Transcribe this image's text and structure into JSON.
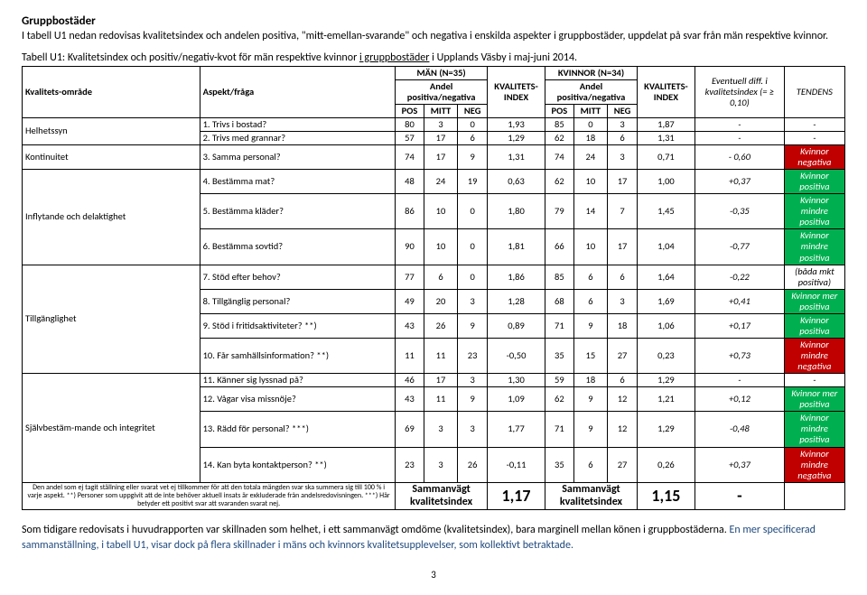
{
  "title": "Gruppbostäder",
  "intro": "I tabell U1 nedan redovisas kvalitetsindex och andelen positiva, \"mitt-emellan-svarande\" och negativa i enskilda aspekter i gruppbostäder, uppdelat på svar från män respektive kvinnor.",
  "caption_plain": "Tabell U1: Kvalitetsindex och positiv/negativ-kvot för män respektive kvinnor ",
  "caption_underlined": "i gruppbostäder",
  "caption_after": " i Upplands Väsby i maj-juni 2014.",
  "headers": {
    "omrade": "Kvalitets-område",
    "aspekt": "Aspekt/fråga",
    "man": "MÄN (N=35)",
    "kvinnor": "KVINNOR (N=34)",
    "andel": "Andel positiva/negativa",
    "kvalindex": "KVALITETS-INDEX",
    "pos": "POS",
    "mitt": "MITT",
    "neg": "NEG",
    "diff": "Eventuell diff. i kvalitetsindex (= ≥ 0,10)",
    "tendens": "TENDENS"
  },
  "areas": [
    {
      "label": "Helhetssyn",
      "rows": [
        "r0",
        "r1"
      ]
    },
    {
      "label": "Kontinuitet",
      "rows": [
        "r2"
      ]
    },
    {
      "label": "Inflytande och delaktighet",
      "rows": [
        "r3",
        "r4",
        "r5"
      ]
    },
    {
      "label": "Tillgänglighet",
      "rows": [
        "r6",
        "r7",
        "r8",
        "r9"
      ]
    },
    {
      "label": "Självbestäm-mande och integritet",
      "rows": [
        "r10",
        "r11",
        "r12",
        "r13"
      ]
    }
  ],
  "rows": {
    "r0": {
      "q": "1.  Trivs i bostad?",
      "m": [
        80,
        3,
        0
      ],
      "mi": "1,93",
      "k": [
        85,
        0,
        3
      ],
      "ki": "1,87",
      "diff": "-",
      "t": "-",
      "tc": null
    },
    "r1": {
      "q": "2.  Trivs med grannar?",
      "m": [
        57,
        17,
        6
      ],
      "mi": "1,29",
      "k": [
        62,
        18,
        6
      ],
      "ki": "1,31",
      "diff": "-",
      "t": "-",
      "tc": null
    },
    "r2": {
      "q": "3.  Samma personal?",
      "m": [
        74,
        17,
        9
      ],
      "mi": "1,31",
      "k": [
        74,
        24,
        3
      ],
      "ki": "0,71",
      "diff": "- 0,60",
      "t": "Kvinnor negativa",
      "tc": "#c00000"
    },
    "r3": {
      "q": "4.  Bestämma mat?",
      "m": [
        48,
        24,
        19
      ],
      "mi": "0,63",
      "k": [
        62,
        10,
        17
      ],
      "ki": "1,00",
      "diff": "+0,37",
      "t": "Kvinnor positiva",
      "tc": "#00b050"
    },
    "r4": {
      "q": "5.  Bestämma kläder?",
      "m": [
        86,
        10,
        0
      ],
      "mi": "1,80",
      "k": [
        79,
        14,
        7
      ],
      "ki": "1,45",
      "diff": "-0,35",
      "t": "Kvinnor mindre positiva",
      "tc": "#00b050"
    },
    "r5": {
      "q": "6.  Bestämma sovtid?",
      "m": [
        90,
        10,
        0
      ],
      "mi": "1,81",
      "k": [
        66,
        10,
        17
      ],
      "ki": "1,04",
      "diff": "-0,77",
      "t": "Kvinnor mindre positiva",
      "tc": "#00b050"
    },
    "r6": {
      "q": "7.  Stöd efter behov?",
      "m": [
        77,
        6,
        0
      ],
      "mi": "1,86",
      "k": [
        85,
        6,
        6
      ],
      "ki": "1,64",
      "diff": "-0,22",
      "t": "(båda mkt positiva)",
      "tc": null
    },
    "r7": {
      "q": "8.  Tillgänglig personal?",
      "m": [
        49,
        20,
        3
      ],
      "mi": "1,28",
      "k": [
        68,
        6,
        3
      ],
      "ki": "1,69",
      "diff": "+0,41",
      "t": "Kvinnor mer positiva",
      "tc": "#00b050"
    },
    "r8": {
      "q": "9.  Stöd i fritidsaktiviteter? **)",
      "m": [
        43,
        26,
        9
      ],
      "mi": "0,89",
      "k": [
        71,
        9,
        18
      ],
      "ki": "1,06",
      "diff": "+0,17",
      "t": "Kvinnor positiva",
      "tc": "#00b050"
    },
    "r9": {
      "q": "10.  Får samhällsinformation? **)",
      "m": [
        11,
        11,
        23
      ],
      "mi": "-0,50",
      "k": [
        35,
        15,
        27
      ],
      "ki": "0,23",
      "diff": "+0,73",
      "t": "Kvinnor mindre negativa",
      "tc": "#c00000"
    },
    "r10": {
      "q": "11.  Känner sig lyssnad på?",
      "m": [
        46,
        17,
        3
      ],
      "mi": "1,30",
      "k": [
        59,
        18,
        6
      ],
      "ki": "1,29",
      "diff": "-",
      "t": "-",
      "tc": null
    },
    "r11": {
      "q": "12.  Vågar visa missnöje?",
      "m": [
        43,
        11,
        9
      ],
      "mi": "1,09",
      "k": [
        62,
        9,
        12
      ],
      "ki": "1,21",
      "diff": "+0,12",
      "t": "Kvinnor mer positiva",
      "tc": "#00b050"
    },
    "r12": {
      "q": "13.  Rädd för personal? ***)",
      "m": [
        69,
        3,
        3
      ],
      "mi": "1,77",
      "k": [
        71,
        9,
        12
      ],
      "ki": "1,29",
      "diff": "-0,48",
      "t": "Kvinnor mindre positiva",
      "tc": "#00b050"
    },
    "r13": {
      "q": "14.  Kan byta kontaktperson? **)",
      "m": [
        23,
        3,
        26
      ],
      "mi": "-0,11",
      "k": [
        35,
        6,
        27
      ],
      "ki": "0,26",
      "diff": "+0,37",
      "t": "Kvinnor mindre negativa",
      "tc": "#c00000"
    }
  },
  "footnote": "Den andel som ej tagit ställning eller svarat vet ej tillkommer för att den totala mängden svar ska summera sig till 100 % i varje aspekt. **) Personer som uppgivit att de inte behöver aktuell insats är exkluderade från andelsredovisningen. ***) Här betyder ett positivt svar att svaranden svarat nej.",
  "summary": {
    "label": "Sammanvägt kvalitetsindex",
    "m": "1,17",
    "k": "1,15",
    "diff": "-"
  },
  "body1": "Som tidigare redovisats i huvudrapporten var skillnaden som helhet, i ett sammanvägt omdöme (kvalitetsindex), bara marginell mellan könen i gruppbostäderna. ",
  "body2": "En mer specificerad sammanställning, i tabell U1, visar dock på flera skillnader i mäns och kvinnors kvalitetsupplevelser, som kollektivt betraktade.",
  "page": "3"
}
